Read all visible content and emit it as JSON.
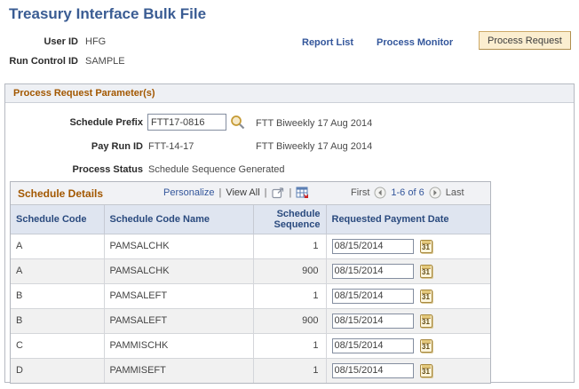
{
  "page_title": "Treasury Interface Bulk File",
  "header": {
    "user_id": {
      "label": "User ID",
      "value": "HFG"
    },
    "run_control": {
      "label": "Run Control ID",
      "value": "SAMPLE"
    },
    "report_list_link": "Report List",
    "process_monitor_link": "Process Monitor",
    "process_request_button": "Process Request"
  },
  "parameters": {
    "section_title": "Process Request Parameter(s)",
    "schedule_prefix": {
      "label": "Schedule Prefix",
      "value": "FTT17-0816",
      "description": "FTT Biweekly 17 Aug 2014"
    },
    "pay_run": {
      "label": "Pay Run ID",
      "value": "FTT-14-17",
      "description": "FTT Biweekly 17 Aug 2014"
    },
    "process_status": {
      "label": "Process Status",
      "value": "Schedule Sequence Generated"
    }
  },
  "grid": {
    "title": "Schedule Details",
    "toolbar": {
      "personalize": "Personalize",
      "view_all": "View All",
      "separator": "|"
    },
    "pagination": {
      "first_label": "First",
      "range_label": "1-6 of 6",
      "last_label": "Last"
    },
    "columns": {
      "code": "Schedule Code",
      "name": "Schedule Code Name",
      "sequence": "Schedule Sequence",
      "date": "Requested Payment Date"
    },
    "rows": [
      {
        "code": "A",
        "name": "PAMSALCHK",
        "sequence": "1",
        "date": "08/15/2014"
      },
      {
        "code": "A",
        "name": "PAMSALCHK",
        "sequence": "900",
        "date": "08/15/2014"
      },
      {
        "code": "B",
        "name": "PAMSALEFT",
        "sequence": "1",
        "date": "08/15/2014"
      },
      {
        "code": "B",
        "name": "PAMSALEFT",
        "sequence": "900",
        "date": "08/15/2014"
      },
      {
        "code": "C",
        "name": "PAMMISCHK",
        "sequence": "1",
        "date": "08/15/2014"
      },
      {
        "code": "D",
        "name": "PAMMISEFT",
        "sequence": "1",
        "date": "08/15/2014"
      }
    ]
  },
  "icons": {
    "lookup": "magnifier",
    "popup": "open-in-new-window",
    "download": "download-to-spreadsheet",
    "prev": "previous-arrow",
    "next": "next-arrow",
    "calendar_glyph": "31"
  },
  "colors": {
    "title_blue": "#3a5c93",
    "link_blue": "#33569b",
    "section_brown": "#a25700",
    "column_header_navy": "#2a4a7e",
    "button_bg": "#fbeed0",
    "button_border": "#cda968",
    "row_alt_bg": "#f1f1f1",
    "calendar_gold": "#a8893e"
  }
}
